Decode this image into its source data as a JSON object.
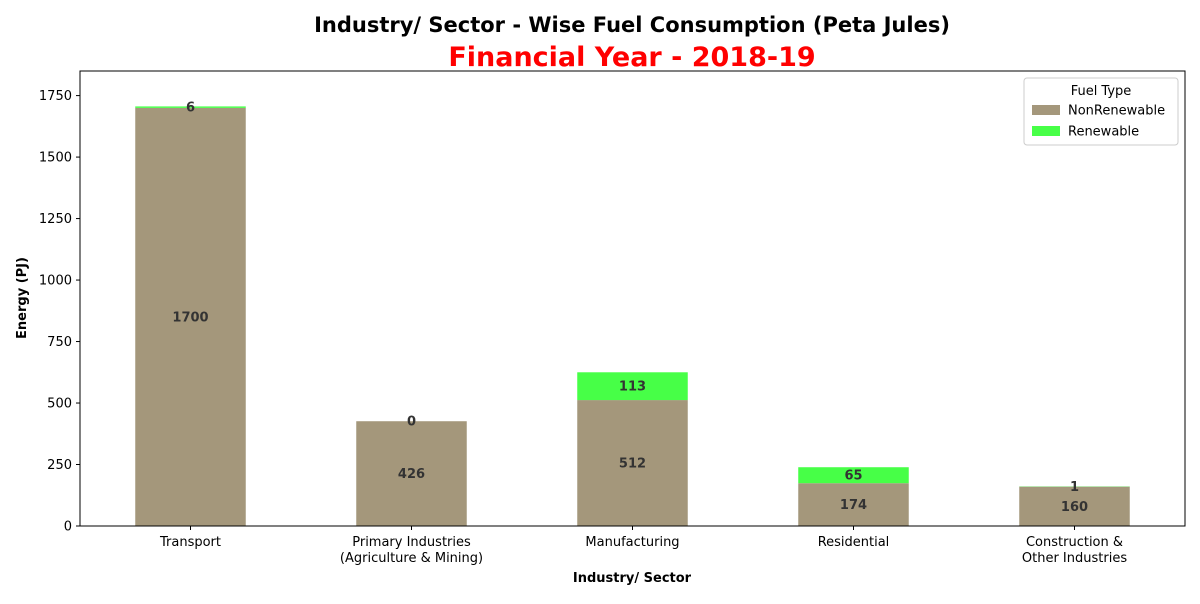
{
  "chart_data": {
    "type": "bar",
    "stacked": true,
    "title": "Industry/ Sector - Wise Fuel Consumption (Peta Jules)",
    "subtitle": "Financial Year - 2018-19",
    "xlabel": "Industry/ Sector",
    "ylabel": "Energy (PJ)",
    "ylim": [
      0,
      1850
    ],
    "yticks": [
      0,
      250,
      500,
      750,
      1000,
      1250,
      1500,
      1750
    ],
    "categories": [
      [
        "Transport"
      ],
      [
        "Primary Industries",
        "(Agriculture & Mining)"
      ],
      [
        "Manufacturing"
      ],
      [
        "Residential"
      ],
      [
        "Construction &",
        "Other Industries"
      ]
    ],
    "series": [
      {
        "name": "NonRenewable",
        "color": "#a4977b",
        "values": [
          1700,
          426,
          512,
          174,
          160
        ]
      },
      {
        "name": "Renewable",
        "color": "#47ff47",
        "values": [
          6,
          0,
          113,
          65,
          1
        ]
      }
    ],
    "legend": {
      "title": "Fuel Type",
      "position": "top-right"
    },
    "grid": false,
    "title_color": "#000000",
    "subtitle_color": "#ff0000"
  }
}
